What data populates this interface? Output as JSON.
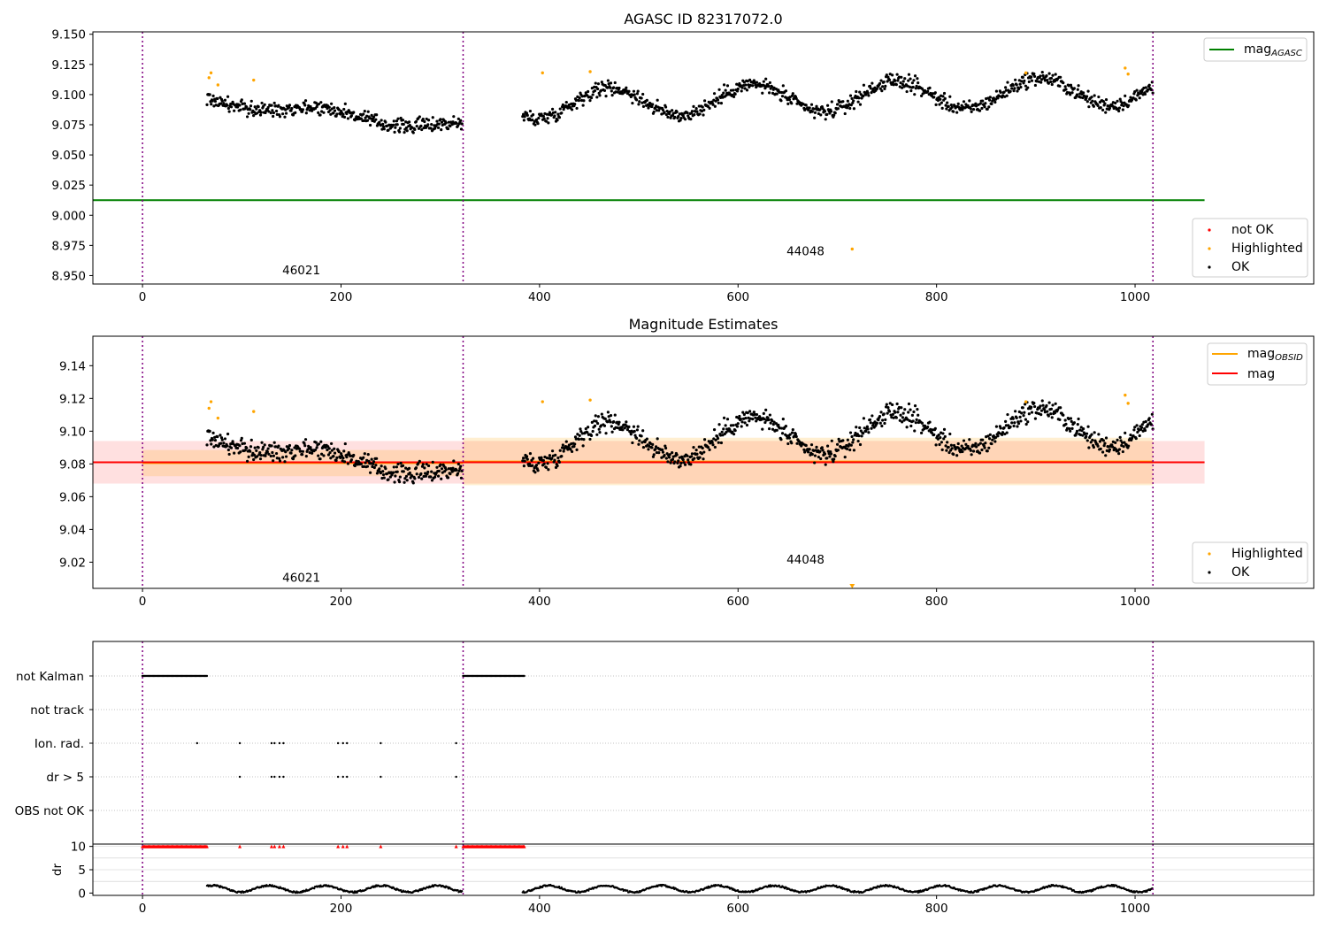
{
  "chart_data": [
    {
      "type": "scatter",
      "title": "AGASC ID 82317072.0",
      "xlim": [
        -50,
        1180
      ],
      "ylim": [
        8.943,
        9.152
      ],
      "xticks": [
        0,
        200,
        400,
        600,
        800,
        1000
      ],
      "yticks": [
        "8.950",
        "8.975",
        "9.000",
        "9.025",
        "9.050",
        "9.075",
        "9.100",
        "9.125",
        "9.150"
      ],
      "obs_boundaries": [
        0,
        323,
        1018
      ],
      "obs_labels": [
        {
          "text": "46021",
          "x": 160,
          "y": 8.951
        },
        {
          "text": "44048",
          "x": 668,
          "y": 8.967
        }
      ],
      "agasc_mag": 9.0125,
      "agasc_span": [
        -50,
        1070
      ],
      "legend_top": [
        {
          "label": "mag",
          "sub": "AGASC",
          "color": "#008000"
        }
      ],
      "legend_bottom": [
        {
          "label": "not OK",
          "color": "#ff0000"
        },
        {
          "label": "Highlighted",
          "color": "#ffa500"
        },
        {
          "label": "OK",
          "color": "#000000"
        }
      ],
      "highlighted": [
        [
          67,
          9.114
        ],
        [
          69,
          9.118
        ],
        [
          76,
          9.108
        ],
        [
          112,
          9.112
        ],
        [
          403,
          9.118
        ],
        [
          451,
          9.119
        ],
        [
          890,
          9.118
        ],
        [
          990,
          9.122
        ],
        [
          993,
          9.117
        ],
        [
          715,
          8.972
        ]
      ],
      "segments": [
        {
          "x0": 65,
          "x1": 322,
          "start": 9.096,
          "end": 9.072,
          "amp": 0.004,
          "noise": 0.006
        },
        {
          "x0": 383,
          "x1": 1018,
          "start": 9.092,
          "end": 9.104,
          "amp": 0.012,
          "noise": 0.006
        }
      ]
    },
    {
      "type": "scatter",
      "title": "Magnitude Estimates",
      "xlim": [
        -50,
        1180
      ],
      "ylim": [
        9.004,
        9.158
      ],
      "xticks": [
        0,
        200,
        400,
        600,
        800,
        1000
      ],
      "yticks": [
        "9.02",
        "9.04",
        "9.06",
        "9.08",
        "9.10",
        "9.12",
        "9.14"
      ],
      "obs_boundaries": [
        0,
        323,
        1018
      ],
      "obs_labels": [
        {
          "text": "46021",
          "x": 160,
          "y": 9.008
        },
        {
          "text": "44048",
          "x": 668,
          "y": 9.019
        }
      ],
      "mag": 9.081,
      "mag_band": [
        9.068,
        9.094
      ],
      "mag_span": [
        -50,
        1070
      ],
      "mag_obsid": [
        {
          "x0": 0,
          "x1": 323,
          "mag": 9.0805,
          "lo": 9.0725,
          "hi": 9.0885
        },
        {
          "x0": 323,
          "x1": 1018,
          "mag": 9.0815,
          "lo": 9.067,
          "hi": 9.096
        }
      ],
      "legend_top": [
        {
          "label": "mag",
          "sub": "OBSID",
          "color": "#ffa500"
        },
        {
          "label": "mag",
          "sub": "",
          "color": "#ff0000"
        }
      ],
      "legend_bottom": [
        {
          "label": "Highlighted",
          "color": "#ffa500"
        },
        {
          "label": "OK",
          "color": "#000000"
        }
      ],
      "highlighted": [
        [
          67,
          9.114
        ],
        [
          69,
          9.118
        ],
        [
          76,
          9.108
        ],
        [
          112,
          9.112
        ],
        [
          403,
          9.118
        ],
        [
          451,
          9.119
        ],
        [
          890,
          9.118
        ],
        [
          990,
          9.122
        ],
        [
          993,
          9.117
        ]
      ],
      "offscale_marker": {
        "x": 715,
        "y": 9.005
      },
      "segments": [
        {
          "x0": 65,
          "x1": 322,
          "start": 9.096,
          "end": 9.072,
          "amp": 0.004,
          "noise": 0.006
        },
        {
          "x0": 383,
          "x1": 1018,
          "start": 9.092,
          "end": 9.104,
          "amp": 0.012,
          "noise": 0.006
        }
      ]
    },
    {
      "type": "scatter",
      "xlim": [
        -50,
        1180
      ],
      "categories": [
        "not Kalman",
        "not track",
        "Ion. rad.",
        "dr > 5",
        "OBS not OK"
      ],
      "obs_boundaries": [
        0,
        323,
        1018
      ],
      "flags": {
        "not Kalman": [
          [
            0,
            65
          ],
          [
            323,
            385
          ]
        ],
        "Ion. rad.": [
          55,
          98,
          130,
          133,
          138,
          142,
          197,
          202,
          206,
          240,
          316
        ],
        "dr > 5": [
          98,
          130,
          133,
          138,
          142,
          197,
          202,
          206,
          240,
          316
        ]
      }
    },
    {
      "type": "line",
      "xlim": [
        -50,
        1180
      ],
      "ylabel": "dr",
      "ylim": [
        -0.5,
        10.5
      ],
      "yticks": [
        "0",
        "5",
        "10"
      ],
      "xticks": [
        0,
        200,
        400,
        600,
        800,
        1000
      ],
      "obs_boundaries": [
        0,
        323,
        1018
      ],
      "capped_value": 10,
      "capped_points": [
        [
          0,
          65
        ],
        [
          323,
          385
        ]
      ],
      "capped_singles": [
        98,
        130,
        133,
        138,
        142,
        197,
        202,
        206,
        240,
        316
      ],
      "dr_segments": [
        [
          65,
          322
        ],
        [
          383,
          1018
        ]
      ]
    }
  ]
}
